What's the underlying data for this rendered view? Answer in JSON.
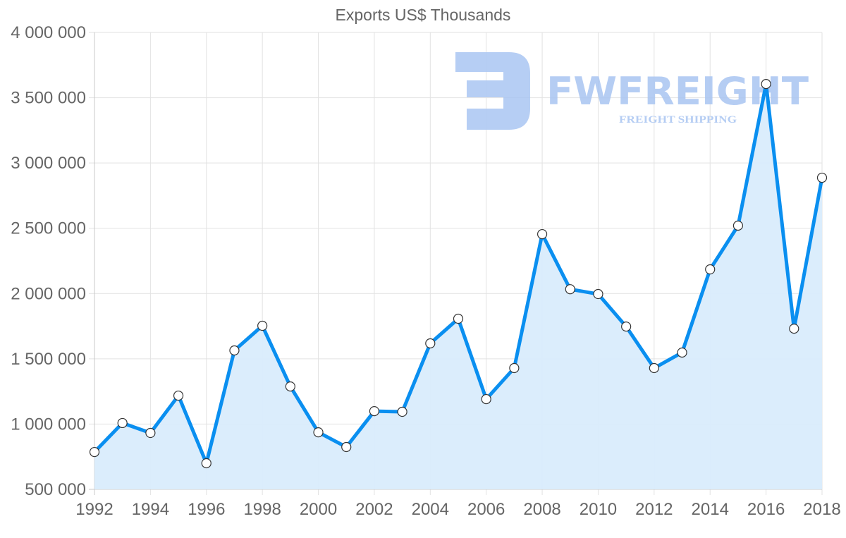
{
  "title": "Exports US$ Thousands",
  "watermark": {
    "brand": "FWFREIGHT",
    "tagline": "FREIGHT SHIPPING",
    "color": "#a9c5f2"
  },
  "colors": {
    "line": "#0a8ff0",
    "fill": "#d9ecfc",
    "grid": "#e2e2e2",
    "point_fill": "#ffffff",
    "point_stroke": "#333333",
    "text": "#666666"
  },
  "chart_data": {
    "type": "line",
    "title": "Exports US$ Thousands",
    "xlabel": "",
    "ylabel": "",
    "x": [
      1992,
      1993,
      1994,
      1995,
      1996,
      1997,
      1998,
      1999,
      2000,
      2001,
      2002,
      2003,
      2004,
      2005,
      2006,
      2007,
      2008,
      2009,
      2010,
      2011,
      2012,
      2013,
      2014,
      2015,
      2016,
      2017,
      2018
    ],
    "series": [
      {
        "name": "Exports US$ Thousands",
        "values": [
          786000,
          1008000,
          932000,
          1218000,
          700000,
          1564000,
          1753000,
          1288000,
          937000,
          824000,
          1099000,
          1094000,
          1618000,
          1807000,
          1191000,
          1429000,
          2455000,
          2033000,
          1996000,
          1747000,
          1429000,
          1548000,
          2185000,
          2520000,
          3605000,
          1731000,
          2887000
        ],
        "fill": true
      }
    ],
    "ylim": [
      500000,
      4000000
    ],
    "xlim": [
      1992,
      2018
    ],
    "yticks": [
      "4 000 000",
      "3 500 000",
      "3 000 000",
      "2 500 000",
      "2 000 000",
      "1 500 000",
      "1 000 000",
      "500 000"
    ],
    "ytick_values": [
      4000000,
      3500000,
      3000000,
      2500000,
      2000000,
      1500000,
      1000000,
      500000
    ],
    "xticks": [
      "1992",
      "1994",
      "1996",
      "1998",
      "2000",
      "2002",
      "2004",
      "2006",
      "2008",
      "2010",
      "2012",
      "2014",
      "2016",
      "2018"
    ],
    "grid": true,
    "legend": null
  }
}
